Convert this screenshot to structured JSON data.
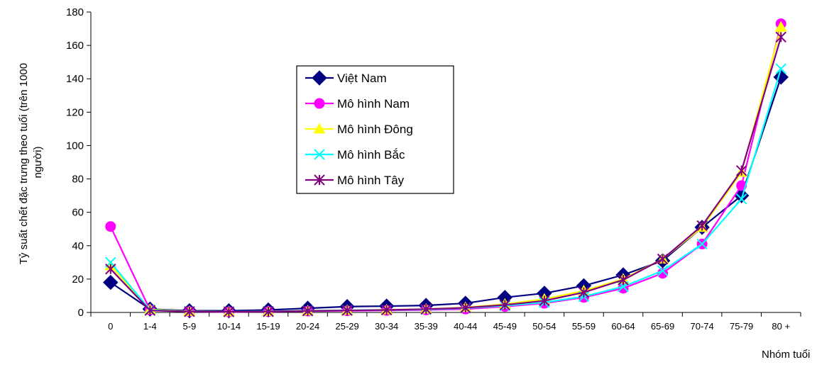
{
  "chart_data": {
    "type": "line",
    "title": "",
    "xlabel": "Nhóm tuổi",
    "ylabel_line1": "Tỷ suất chết đặc trưng theo tuổi (trên 1000",
    "ylabel_line2": "người)",
    "ylim": [
      0,
      180
    ],
    "yticks": [
      "0",
      "20",
      "40",
      "60",
      "80",
      "100",
      "120",
      "140",
      "160",
      "180"
    ],
    "grid": false,
    "legend_position": "upper-center",
    "categories": [
      "0",
      "1-4",
      "5-9",
      "10-14",
      "15-19",
      "20-24",
      "25-29",
      "30-34",
      "35-39",
      "40-44",
      "45-49",
      "50-54",
      "55-59",
      "60-64",
      "65-69",
      "70-74",
      "75-79",
      "80 +"
    ],
    "series": [
      {
        "name": "Việt Nam",
        "color": "#000080",
        "marker": "diamond",
        "values": [
          18,
          2,
          1,
          1,
          1.5,
          2.5,
          3.5,
          3.8,
          4.2,
          5.5,
          9,
          11.5,
          16,
          22.5,
          31,
          51,
          70,
          141
        ]
      },
      {
        "name": "Mô hình Nam",
        "color": "#ff00ff",
        "marker": "circle",
        "values": [
          51.5,
          1.5,
          0.5,
          0.3,
          0.5,
          0.8,
          1.0,
          1.2,
          1.5,
          2.0,
          3.5,
          5.5,
          9,
          14.5,
          23.5,
          41,
          76,
          173
        ]
      },
      {
        "name": "Mô hình Đông",
        "color": "#ffff00",
        "marker": "triangle",
        "values": [
          28,
          1.8,
          0.6,
          0.4,
          0.6,
          1.0,
          1.3,
          1.6,
          2.0,
          3.0,
          5.0,
          8.0,
          13,
          20,
          32,
          51,
          84,
          171
        ]
      },
      {
        "name": "Mô hình Bắc",
        "color": "#00ffff",
        "marker": "x",
        "values": [
          30,
          1.5,
          0.5,
          0.4,
          0.6,
          1.0,
          1.3,
          1.5,
          1.8,
          2.6,
          4.0,
          6.0,
          9.5,
          15.5,
          25,
          41,
          68,
          146
        ]
      },
      {
        "name": "Mô hình Tây",
        "color": "#800080",
        "marker": "star",
        "values": [
          26,
          1.2,
          0.5,
          0.4,
          0.5,
          0.9,
          1.2,
          1.5,
          2.0,
          2.8,
          4.5,
          7.0,
          12,
          19.5,
          32,
          52,
          85,
          165
        ]
      }
    ]
  }
}
